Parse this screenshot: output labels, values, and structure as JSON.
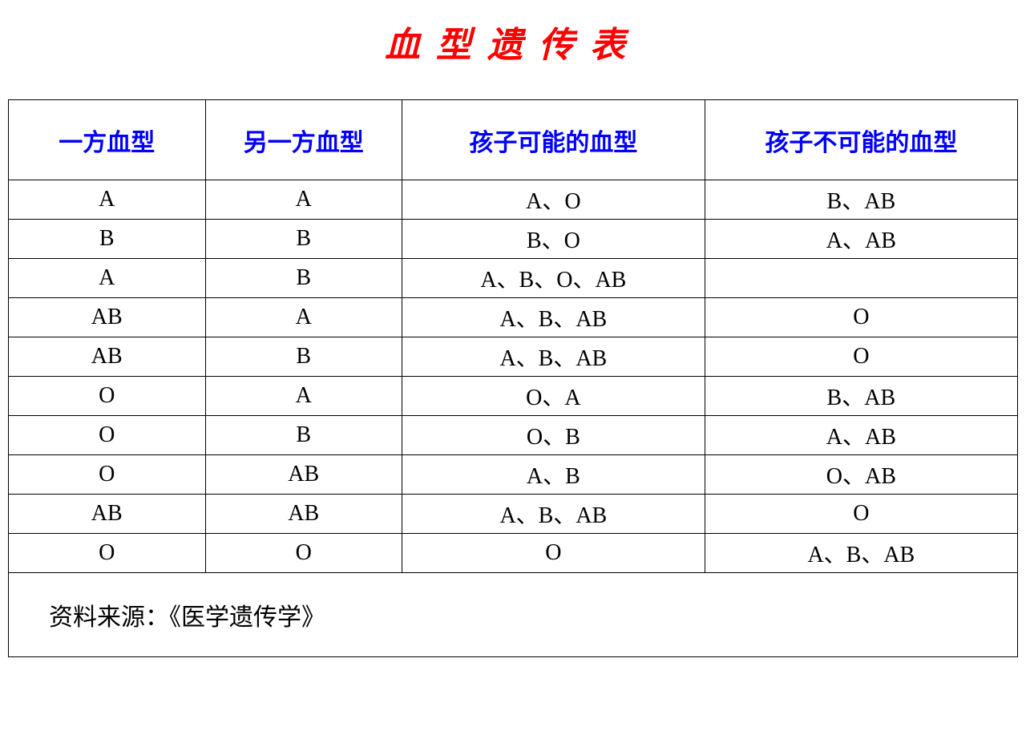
{
  "title": {
    "text": "血型遗传表",
    "color": "#ff0000",
    "fontsize": 44
  },
  "table": {
    "header_color": "#0000ff",
    "body_color": "#000000",
    "border_color": "#000000",
    "background_color": "#ffffff",
    "columns": [
      {
        "key": "c1",
        "label": "一方血型",
        "width_pct": 19.5
      },
      {
        "key": "c2",
        "label": "另一方血型",
        "width_pct": 19.5
      },
      {
        "key": "c3",
        "label": "孩子可能的血型",
        "width_pct": 30
      },
      {
        "key": "c4",
        "label": "孩子不可能的血型",
        "width_pct": 31
      }
    ],
    "rows": [
      {
        "c1": "A",
        "c2": "A",
        "c3": "A、O",
        "c4": "B、AB"
      },
      {
        "c1": "B",
        "c2": "B",
        "c3": "B、O",
        "c4": "A、AB"
      },
      {
        "c1": "A",
        "c2": "B",
        "c3": "A、B、O、AB",
        "c4": ""
      },
      {
        "c1": "AB",
        "c2": "A",
        "c3": "A、B、AB",
        "c4": "O"
      },
      {
        "c1": "AB",
        "c2": "B",
        "c3": "A、B、AB",
        "c4": "O"
      },
      {
        "c1": "O",
        "c2": "A",
        "c3": "O、A",
        "c4": "B、AB"
      },
      {
        "c1": "O",
        "c2": "B",
        "c3": "O、B",
        "c4": "A、AB"
      },
      {
        "c1": "O",
        "c2": "AB",
        "c3": "A、B",
        "c4": "O、AB"
      },
      {
        "c1": "AB",
        "c2": "AB",
        "c3": "A、B、AB",
        "c4": "O"
      },
      {
        "c1": "O",
        "c2": "O",
        "c3": "O",
        "c4": "A、B、AB"
      }
    ],
    "source": "资料来源：《医学遗传学》"
  }
}
